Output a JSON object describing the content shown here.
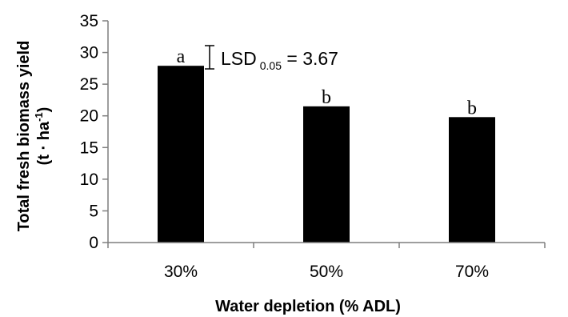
{
  "chart_data": {
    "type": "bar",
    "categories": [
      "30%",
      "50%",
      "70%"
    ],
    "values": [
      27.9,
      21.5,
      19.8
    ],
    "letters": [
      "a",
      "b",
      "b"
    ],
    "xlabel": "Water depletion (% ADL)",
    "ylabel_line1": "Total fresh biomass yield",
    "ylabel_line2": "(t · ha",
    "ylabel_sup": "-1",
    "ylabel_close": ")",
    "ylim": [
      0,
      35
    ],
    "yticks": [
      0,
      5,
      10,
      15,
      20,
      25,
      30,
      35
    ],
    "annotation": {
      "text_main": "LSD",
      "text_sub": "0.05",
      "text_rest": " = 3.67",
      "value": 3.67
    },
    "bar_color": "#000000",
    "grid": false,
    "legend": "none"
  }
}
